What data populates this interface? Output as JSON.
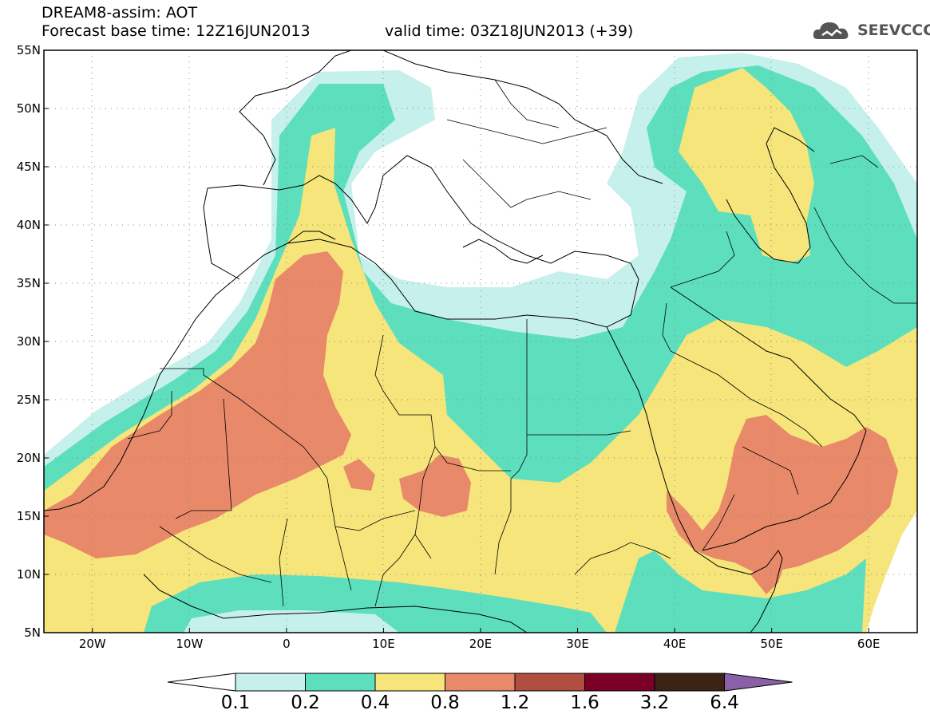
{
  "header": {
    "title_line1": "DREAM8-assim: AOT",
    "title_line2": "Forecast base time: 12Z16JUN2013",
    "valid_time": "valid time: 03Z18JUN2013 (+39)"
  },
  "logo": {
    "text": "SEEVCCC",
    "icon": "cloud-icon"
  },
  "map": {
    "lon_range": [
      -25,
      65
    ],
    "lat_range": [
      5,
      55
    ],
    "lat_labels": [
      "55N",
      "50N",
      "45N",
      "40N",
      "35N",
      "30N",
      "25N",
      "20N",
      "15N",
      "10N",
      "5N"
    ],
    "lon_labels": [
      "20W",
      "10W",
      "0",
      "10E",
      "20E",
      "30E",
      "40E",
      "50E",
      "60E"
    ],
    "grid": "dotted"
  },
  "colorbar": {
    "labels": [
      "0.1",
      "0.2",
      "0.4",
      "0.8",
      "1.2",
      "1.6",
      "3.2",
      "6.4"
    ],
    "colors": [
      "#ffffff",
      "#c6f0ec",
      "#5ddfbd",
      "#f5e57a",
      "#e8896a",
      "#b04f3f",
      "#7a0026",
      "#3b2416",
      "#8a60a8"
    ]
  }
}
